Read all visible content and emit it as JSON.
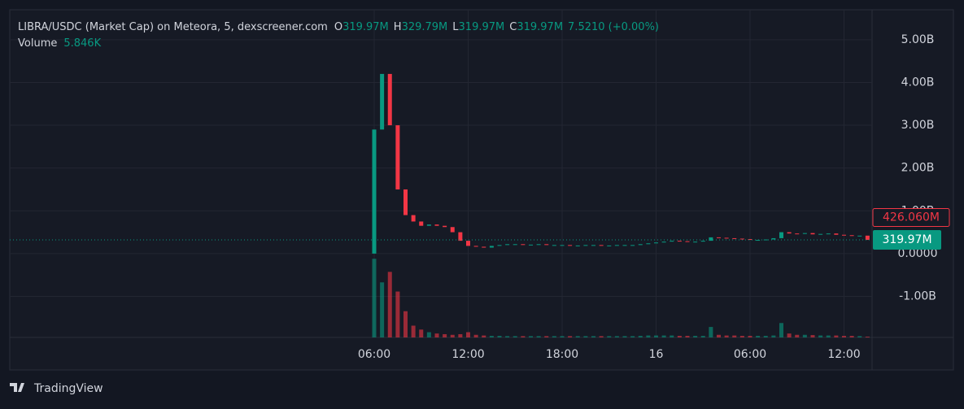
{
  "chart_data": {
    "type": "candlestick",
    "title": "LIBRA/USDC (Market Cap) on Meteora, 5, dexscreener.com",
    "ohlc": [
      {
        "key": "O",
        "value": "319.97M"
      },
      {
        "key": "H",
        "value": "329.79M"
      },
      {
        "key": "L",
        "value": "319.97M"
      },
      {
        "key": "C",
        "value": "319.97M"
      }
    ],
    "change": "7.5210 (+0.00%)",
    "categories": [
      "06:00",
      null,
      null,
      null,
      null,
      null,
      null,
      null,
      null,
      null,
      null,
      null,
      "12:00",
      null,
      null,
      null,
      null,
      null,
      null,
      null,
      null,
      null,
      null,
      null,
      "18:00",
      null,
      null,
      null,
      null,
      null,
      null,
      null,
      null,
      null,
      null,
      null,
      "16",
      null,
      null,
      null,
      null,
      null,
      null,
      null,
      null,
      null,
      null,
      null,
      "06:00",
      null,
      null,
      null,
      null,
      null,
      null,
      null,
      null,
      null,
      null,
      null,
      "12:00",
      null,
      null,
      null
    ],
    "values": [
      2.9,
      4.2,
      3.0,
      1.5,
      0.9,
      0.75,
      0.65,
      0.68,
      0.65,
      0.62,
      0.5,
      0.3,
      0.18,
      0.16,
      0.14,
      0.18,
      0.2,
      0.22,
      0.22,
      0.21,
      0.21,
      0.22,
      0.2,
      0.2,
      0.2,
      0.19,
      0.19,
      0.2,
      0.2,
      0.19,
      0.19,
      0.2,
      0.2,
      0.2,
      0.22,
      0.24,
      0.26,
      0.28,
      0.3,
      0.29,
      0.28,
      0.28,
      0.3,
      0.38,
      0.37,
      0.36,
      0.35,
      0.34,
      0.32,
      0.32,
      0.33,
      0.36,
      0.5,
      0.47,
      0.46,
      0.48,
      0.45,
      0.46,
      0.47,
      0.44,
      0.43,
      0.42,
      0.42,
      0.32
    ],
    "up_color": "#089981",
    "down_color": "#f23645",
    "ylim": [
      -1.96,
      5.7
    ],
    "yticks": [
      {
        "value": -1,
        "label": "-1.00B"
      },
      {
        "value": 0,
        "label": "0.0000"
      },
      {
        "value": 1,
        "label": "1.00B"
      },
      {
        "value": 2,
        "label": "2.00B"
      },
      {
        "value": 3,
        "label": "3.00B"
      },
      {
        "value": 4,
        "label": "4.00B"
      },
      {
        "value": 5,
        "label": "5.00B"
      }
    ],
    "grid": true,
    "price_labels": [
      {
        "value": 0.42606,
        "label": "426.060M",
        "color": "#f23645"
      },
      {
        "value": 0.31997,
        "label": "319.97M",
        "color": "#089981"
      }
    ],
    "volume": {
      "label": "Volume",
      "value_label": "5.846K",
      "ylim": [
        0,
        620
      ],
      "values": [
        600,
        420,
        500,
        350,
        200,
        90,
        60,
        40,
        30,
        25,
        20,
        25,
        40,
        20,
        15,
        12,
        12,
        10,
        10,
        10,
        10,
        10,
        10,
        10,
        10,
        10,
        10,
        10,
        10,
        10,
        10,
        10,
        10,
        10,
        12,
        15,
        15,
        15,
        15,
        12,
        12,
        12,
        12,
        80,
        20,
        15,
        15,
        12,
        12,
        12,
        12,
        15,
        110,
        30,
        20,
        20,
        18,
        15,
        15,
        15,
        12,
        12,
        10,
        5.846
      ]
    },
    "brand": "TradingView"
  }
}
